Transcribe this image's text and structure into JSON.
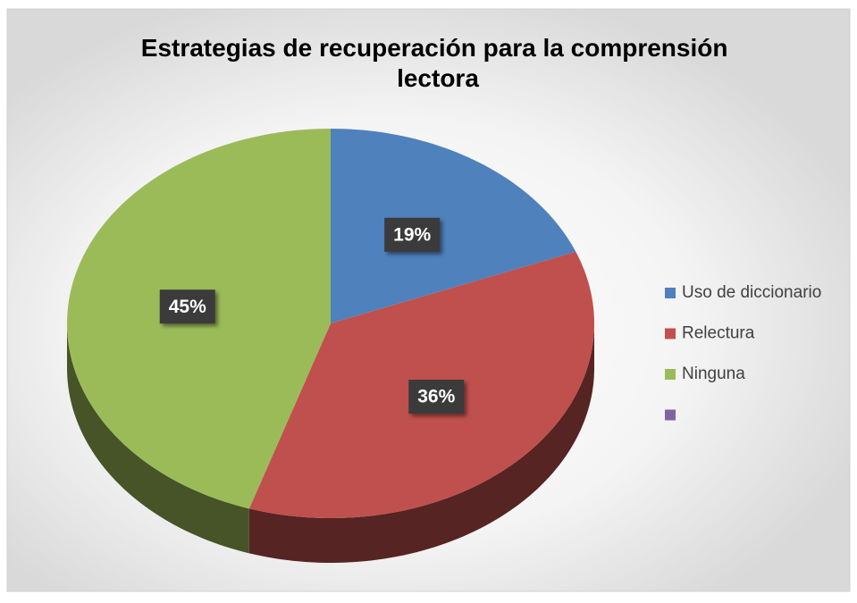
{
  "chart_data": {
    "type": "pie",
    "title": "Estrategias de recuperación para la comprensión lectora",
    "categories": [
      "Uso de diccionario",
      "Relectura",
      "Ninguna",
      null
    ],
    "values": [
      19,
      36,
      45,
      0
    ],
    "value_labels": [
      "19%",
      "36%",
      "45%",
      null
    ],
    "colors": [
      "#4f81bd",
      "#c0504d",
      "#9bbb59",
      "#8064a2"
    ],
    "legend": "right"
  }
}
